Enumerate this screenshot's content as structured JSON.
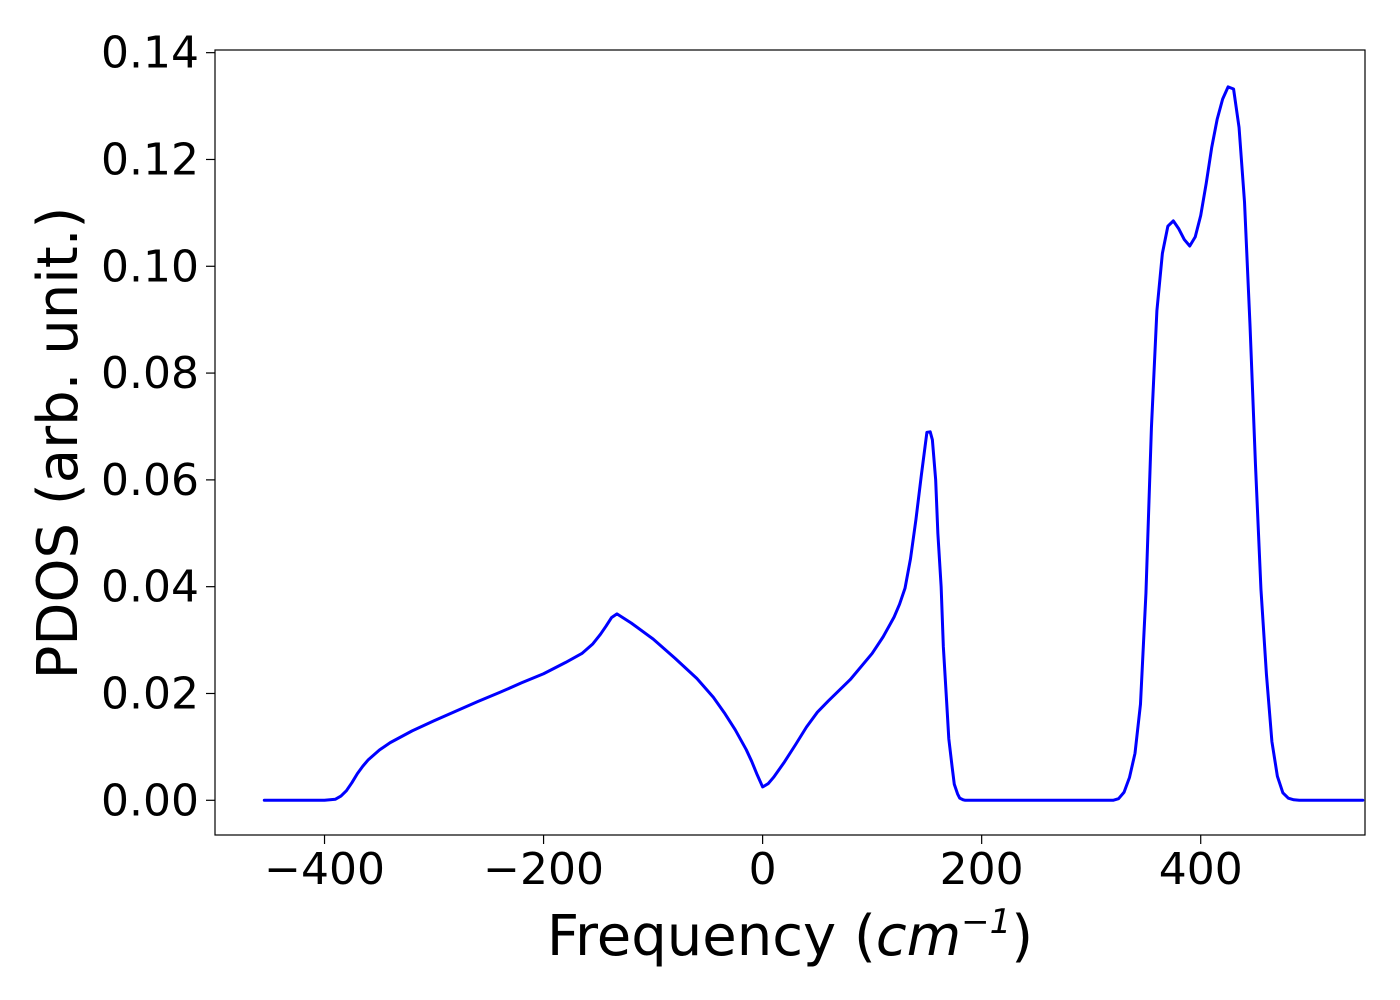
{
  "chart_data": {
    "type": "line",
    "title": "",
    "xlabel": "Frequency",
    "xlabel_unit_base": "cm",
    "xlabel_unit_exp": "−1",
    "ylabel": "PDOS (arb. unit.)",
    "xlim": [
      -500,
      550
    ],
    "ylim": [
      -0.0065,
      0.1405
    ],
    "x_ticks": [
      -400,
      -200,
      0,
      200,
      400
    ],
    "x_tick_labels": [
      "−400",
      "−200",
      "0",
      "200",
      "400"
    ],
    "y_ticks": [
      0.0,
      0.02,
      0.04,
      0.06,
      0.08,
      0.1,
      0.12,
      0.14
    ],
    "y_tick_labels": [
      "0.00",
      "0.02",
      "0.04",
      "0.06",
      "0.08",
      "0.10",
      "0.12",
      "0.14"
    ],
    "grid": false,
    "legend": "none",
    "series": [
      {
        "color": "#0000ff",
        "x": [
          -455,
          -400,
          -390,
          -385,
          -380,
          -375,
          -370,
          -365,
          -360,
          -350,
          -340,
          -320,
          -300,
          -280,
          -260,
          -240,
          -220,
          -200,
          -180,
          -165,
          -155,
          -148,
          -143,
          -138,
          -133,
          -120,
          -100,
          -80,
          -60,
          -45,
          -35,
          -25,
          -15,
          -10,
          -5,
          0,
          5,
          10,
          20,
          30,
          40,
          50,
          60,
          80,
          100,
          110,
          120,
          125,
          130,
          135,
          140,
          145,
          150,
          153,
          155,
          158,
          160,
          163,
          165,
          168,
          170,
          173,
          175,
          178,
          180,
          183,
          185,
          190,
          195,
          200,
          250,
          300,
          320,
          325,
          330,
          335,
          340,
          345,
          350,
          355,
          360,
          365,
          370,
          375,
          380,
          385,
          390,
          395,
          400,
          405,
          410,
          415,
          420,
          425,
          430,
          435,
          440,
          445,
          450,
          455,
          460,
          465,
          470,
          475,
          480,
          485,
          490,
          500,
          520,
          548
        ],
        "y": [
          0.0,
          0.0,
          0.0002,
          0.0008,
          0.0018,
          0.0033,
          0.005,
          0.0064,
          0.0076,
          0.0094,
          0.0108,
          0.013,
          0.0149,
          0.0167,
          0.0185,
          0.0202,
          0.022,
          0.0237,
          0.0258,
          0.0275,
          0.0293,
          0.0311,
          0.0326,
          0.0342,
          0.0349,
          0.0332,
          0.0302,
          0.0266,
          0.0228,
          0.0193,
          0.0164,
          0.0132,
          0.0095,
          0.0073,
          0.0048,
          0.0025,
          0.0031,
          0.0043,
          0.0072,
          0.0104,
          0.0137,
          0.0165,
          0.0186,
          0.0226,
          0.0275,
          0.0306,
          0.0343,
          0.0367,
          0.0397,
          0.0452,
          0.0526,
          0.061,
          0.0689,
          0.069,
          0.0675,
          0.06,
          0.05,
          0.04,
          0.0288,
          0.0185,
          0.0115,
          0.0063,
          0.003,
          0.0012,
          0.0004,
          0.0001,
          0.0,
          0.0,
          0.0,
          0.0,
          0.0,
          0.0,
          0.0,
          0.0003,
          0.0015,
          0.0043,
          0.0088,
          0.018,
          0.0388,
          0.0698,
          0.0917,
          0.1024,
          0.1075,
          0.1085,
          0.107,
          0.105,
          0.1038,
          0.1055,
          0.1095,
          0.1155,
          0.1222,
          0.1275,
          0.1313,
          0.1336,
          0.1332,
          0.126,
          0.112,
          0.089,
          0.0628,
          0.0395,
          0.0236,
          0.011,
          0.0045,
          0.0014,
          0.0004,
          0.0001,
          0.0,
          0.0,
          0.0,
          0.0
        ]
      }
    ]
  }
}
